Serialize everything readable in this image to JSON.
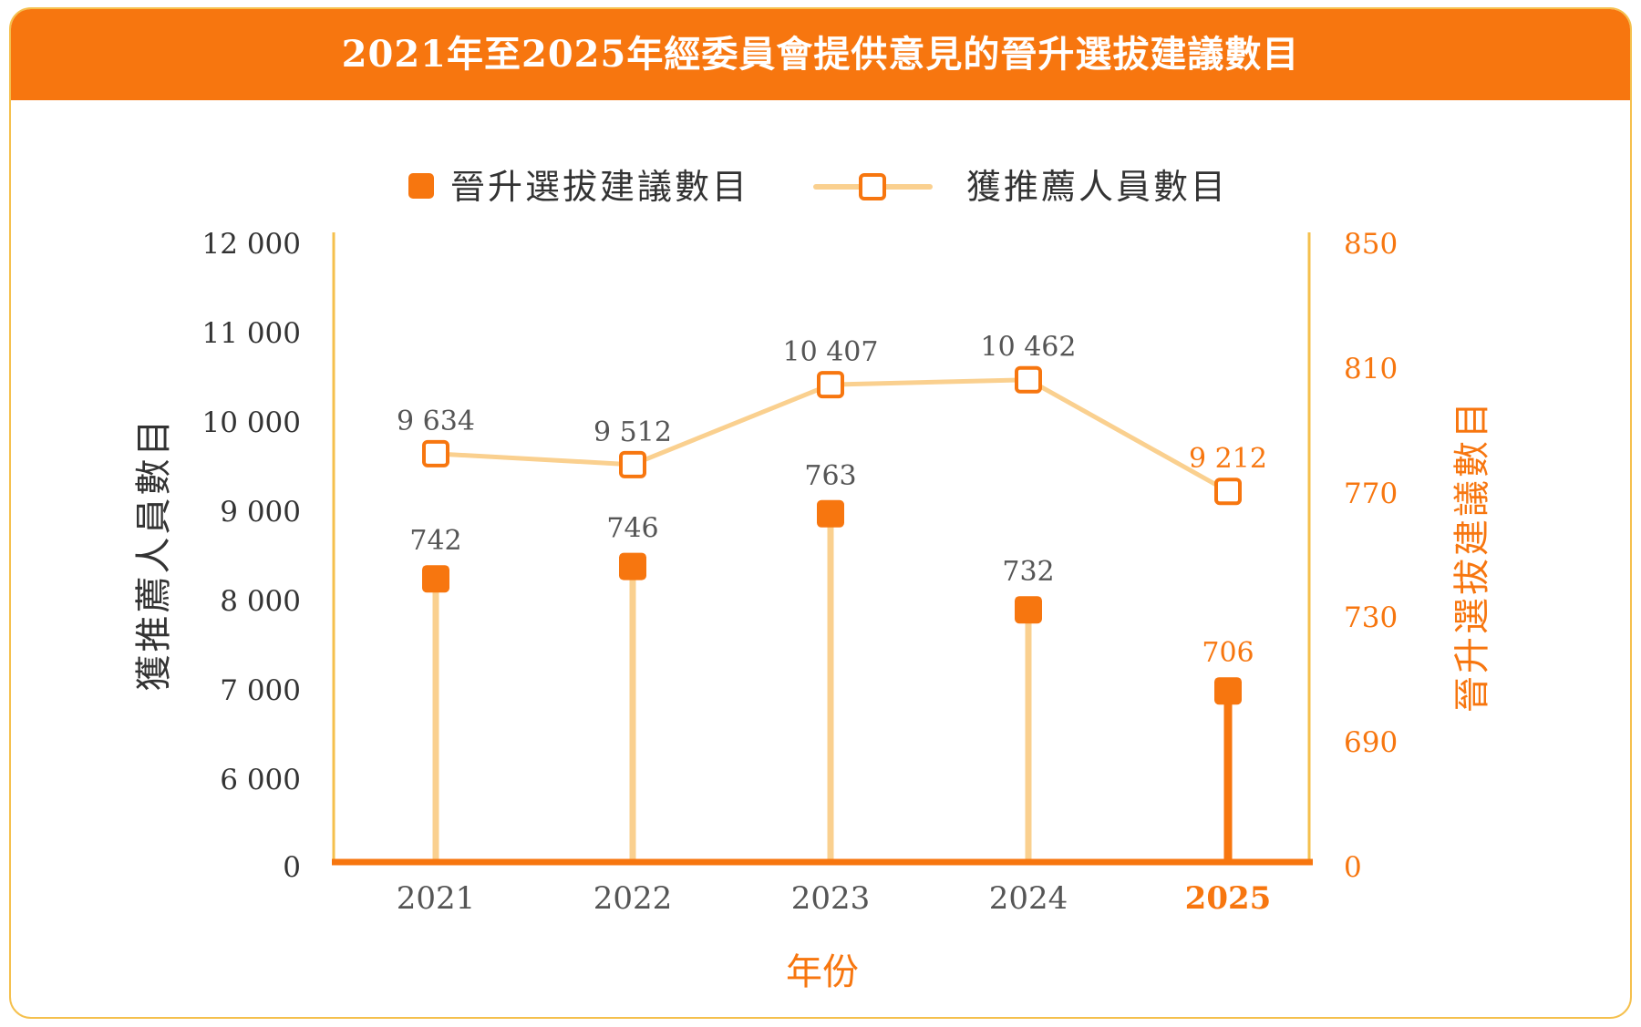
{
  "title": "2021年至2025年經委員會提供意見的晉升選拔建議數目",
  "colors": {
    "banner": "#f7760f",
    "accent": "#f7760f",
    "light": "#fad08f",
    "border": "#f5c04d",
    "text_dark": "#333333",
    "text_gray": "#555555"
  },
  "chart_data": {
    "type": "line+stem",
    "title": "2021年至2025年經委員會提供意見的晉升選拔建議數目",
    "categories": [
      "2021",
      "2022",
      "2023",
      "2024",
      "2025"
    ],
    "xlabel": "年份",
    "ylabel_left": "獲推薦人員數目",
    "ylabel_right": "晉升選拔建議數目",
    "legend": {
      "position": "top-center"
    },
    "y_left_ticks": [
      "12 000",
      "11 000",
      "10 000",
      "9 000",
      "8 000",
      "7 000",
      "6 000",
      "0"
    ],
    "y_right_ticks": [
      "850",
      "810",
      "770",
      "730",
      "690",
      "0"
    ],
    "series": [
      {
        "name": "晉升選拔建議數目",
        "kind": "stem",
        "axis": "right",
        "values": [
          742,
          746,
          763,
          732,
          706
        ],
        "labels": [
          "742",
          "746",
          "763",
          "732",
          "706"
        ]
      },
      {
        "name": "獲推薦人員數目",
        "kind": "line",
        "axis": "left",
        "values": [
          9634,
          9512,
          10407,
          10462,
          9212
        ],
        "labels": [
          "9 634",
          "9 512",
          "10 407",
          "10 462",
          "9 212"
        ]
      }
    ],
    "highlight_category": "2025"
  }
}
